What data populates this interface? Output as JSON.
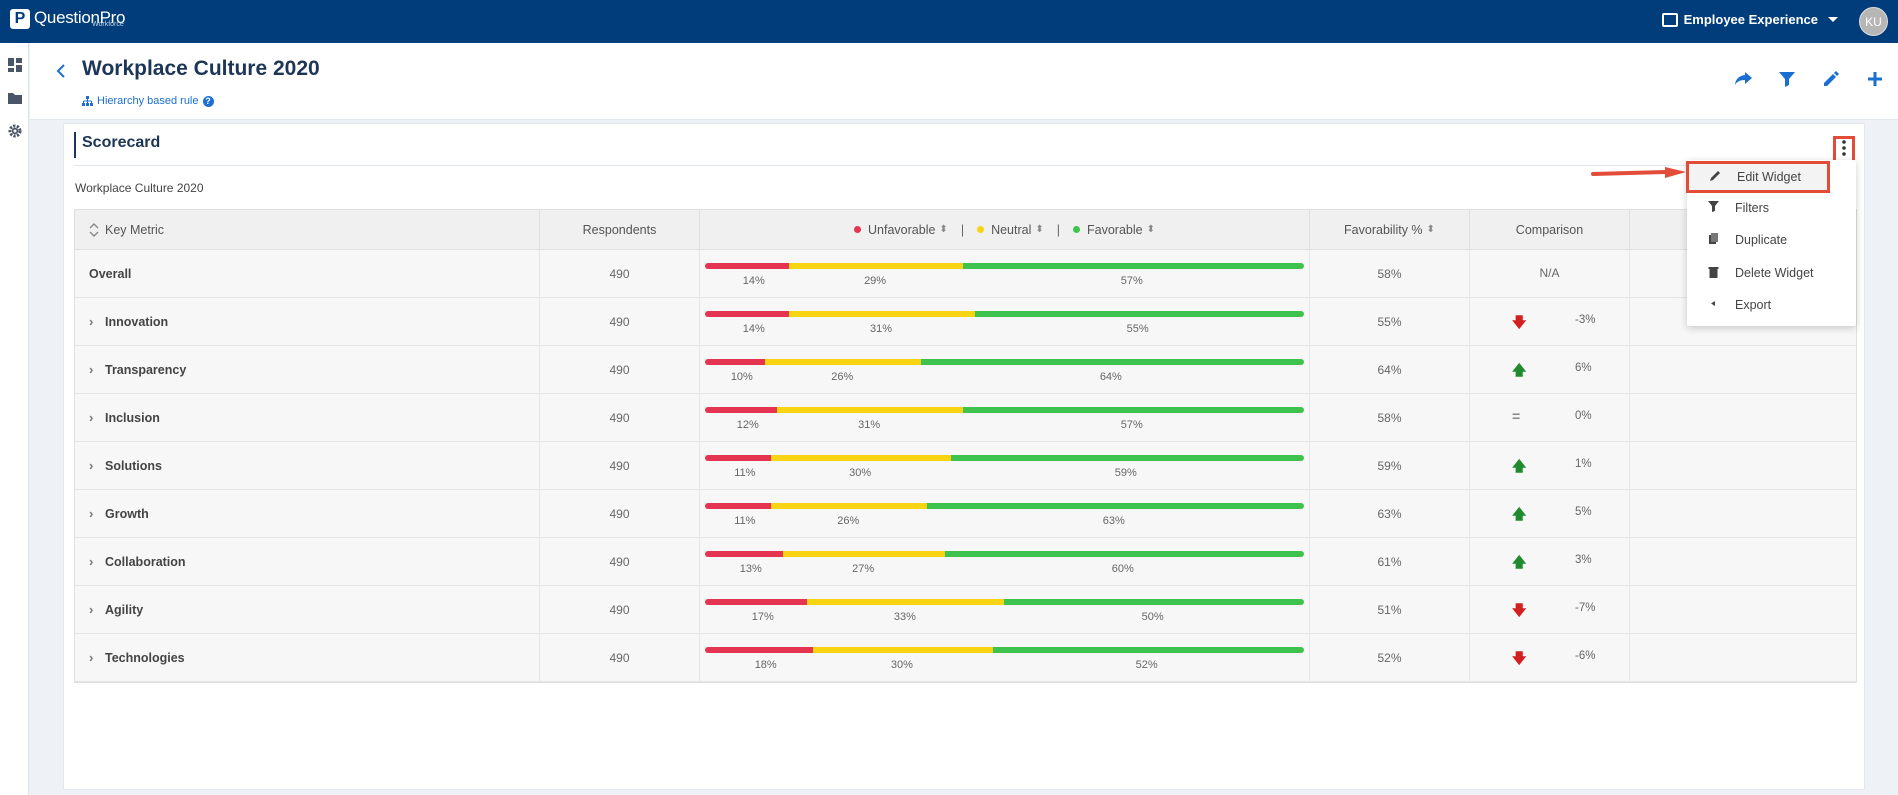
{
  "topbar": {
    "logo_letter": "P",
    "logo_text": "QuestionPro",
    "logo_sub": "Workforce",
    "product": "Employee Experience",
    "avatar": "KU"
  },
  "rail": {
    "icons": [
      "dashboard-icon",
      "folder-icon",
      "settings-icon"
    ]
  },
  "header": {
    "title": "Workplace Culture 2020",
    "hierarchy_rule": "Hierarchy based rule",
    "help": "?",
    "actions": [
      "share-icon",
      "filter-icon",
      "edit-icon",
      "add-icon"
    ]
  },
  "widget": {
    "title": "Scorecard",
    "subtitle": "Workplace Culture 2020"
  },
  "table": {
    "headers": {
      "key_metric": "Key Metric",
      "respondents": "Respondents",
      "unfavorable": "Unfavorable",
      "neutral": "Neutral",
      "favorable": "Favorable",
      "favorability": "Favorability %",
      "comparison": "Comparison"
    },
    "separator": "|",
    "colors": {
      "unfavorable": "#e5344f",
      "neutral": "#f7d513",
      "favorable": "#3fc350",
      "up": "#1f8a2f",
      "down": "#d32020",
      "equal": "#888888"
    },
    "rows": [
      {
        "metric": "Overall",
        "expandable": false,
        "respondents": "490",
        "unfav": 14,
        "neutral": 29,
        "fav": 57,
        "unfav_label": "14%",
        "neutral_label": "29%",
        "fav_label": "57%",
        "favorability": "58%",
        "trend": "none",
        "trend_glyph": "",
        "comparison": "N/A"
      },
      {
        "metric": "Innovation",
        "expandable": true,
        "respondents": "490",
        "unfav": 14,
        "neutral": 31,
        "fav": 55,
        "unfav_label": "14%",
        "neutral_label": "31%",
        "fav_label": "55%",
        "favorability": "55%",
        "trend": "down",
        "trend_glyph": "🡇",
        "comparison": "-3%"
      },
      {
        "metric": "Transparency",
        "expandable": true,
        "respondents": "490",
        "unfav": 10,
        "neutral": 26,
        "fav": 64,
        "unfav_label": "10%",
        "neutral_label": "26%",
        "fav_label": "64%",
        "favorability": "64%",
        "trend": "up",
        "trend_glyph": "🡅",
        "comparison": "6%"
      },
      {
        "metric": "Inclusion",
        "expandable": true,
        "respondents": "490",
        "unfav": 12,
        "neutral": 31,
        "fav": 57,
        "unfav_label": "12%",
        "neutral_label": "31%",
        "fav_label": "57%",
        "favorability": "58%",
        "trend": "equal",
        "trend_glyph": "=",
        "comparison": "0%"
      },
      {
        "metric": "Solutions",
        "expandable": true,
        "respondents": "490",
        "unfav": 11,
        "neutral": 30,
        "fav": 59,
        "unfav_label": "11%",
        "neutral_label": "30%",
        "fav_label": "59%",
        "favorability": "59%",
        "trend": "up",
        "trend_glyph": "🡅",
        "comparison": "1%"
      },
      {
        "metric": "Growth",
        "expandable": true,
        "respondents": "490",
        "unfav": 11,
        "neutral": 26,
        "fav": 63,
        "unfav_label": "11%",
        "neutral_label": "26%",
        "fav_label": "63%",
        "favorability": "63%",
        "trend": "up",
        "trend_glyph": "🡅",
        "comparison": "5%"
      },
      {
        "metric": "Collaboration",
        "expandable": true,
        "respondents": "490",
        "unfav": 13,
        "neutral": 27,
        "fav": 60,
        "unfav_label": "13%",
        "neutral_label": "27%",
        "fav_label": "60%",
        "favorability": "61%",
        "trend": "up",
        "trend_glyph": "🡅",
        "comparison": "3%"
      },
      {
        "metric": "Agility",
        "expandable": true,
        "respondents": "490",
        "unfav": 17,
        "neutral": 33,
        "fav": 50,
        "unfav_label": "17%",
        "neutral_label": "33%",
        "fav_label": "50%",
        "favorability": "51%",
        "trend": "down",
        "trend_glyph": "🡇",
        "comparison": "-7%"
      },
      {
        "metric": "Technologies",
        "expandable": true,
        "respondents": "490",
        "unfav": 18,
        "neutral": 30,
        "fav": 52,
        "unfav_label": "18%",
        "neutral_label": "30%",
        "fav_label": "52%",
        "favorability": "52%",
        "trend": "down",
        "trend_glyph": "🡇",
        "comparison": "-6%"
      }
    ]
  },
  "menu": {
    "items": [
      {
        "label": "Edit Widget",
        "icon": "pencil-icon",
        "highlighted": true
      },
      {
        "label": "Filters",
        "icon": "filter-icon",
        "highlighted": false
      },
      {
        "label": "Duplicate",
        "icon": "copy-icon",
        "highlighted": false
      },
      {
        "label": "Delete Widget",
        "icon": "trash-icon",
        "highlighted": false
      },
      {
        "label": "Export",
        "icon": "caret-left-icon",
        "highlighted": false
      }
    ]
  }
}
